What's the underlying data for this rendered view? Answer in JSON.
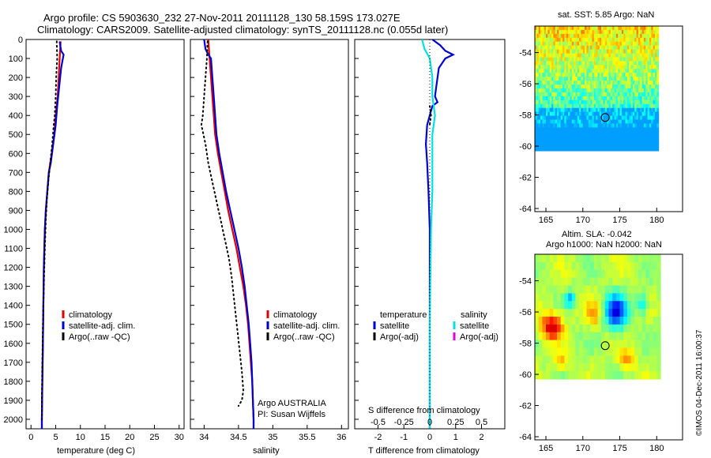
{
  "title": {
    "line1": "Argo profile: CS 5903630_232 27-Nov-2011 20111128_130 58.159S 173.027E",
    "line2": "Climatology: CARS2009. Satellite-adjusted climatology: synTS_20111128.nc (0.055d later)"
  },
  "colors": {
    "clim": "#e00000",
    "sat": "#0000d0",
    "argo": "#000000",
    "sat_sal": "#00e0e0",
    "argo_sal_diff": "#e000e0"
  },
  "chart_data": [
    {
      "id": "temperature",
      "type": "line",
      "xlabel": "temperature (deg C)",
      "ylim": [
        2050,
        0
      ],
      "xlim": [
        -1,
        31
      ],
      "xticks": [
        0,
        5,
        10,
        15,
        20,
        25,
        30
      ],
      "yticks": [
        0,
        100,
        200,
        300,
        400,
        500,
        600,
        700,
        800,
        900,
        1000,
        1100,
        1200,
        1300,
        1400,
        1500,
        1600,
        1700,
        1800,
        1900,
        2000
      ],
      "legend": [
        "climatology",
        "satellite-adj. clim.",
        "Argo(..raw -QC)"
      ],
      "series": [
        {
          "name": "climatology",
          "role": "clim",
          "points": [
            [
              6.0,
              10
            ],
            [
              5.8,
              100
            ],
            [
              5.6,
              200
            ],
            [
              5.4,
              300
            ],
            [
              5.0,
              400
            ],
            [
              4.7,
              500
            ],
            [
              4.2,
              600
            ],
            [
              3.6,
              700
            ],
            [
              3.3,
              800
            ],
            [
              3.0,
              900
            ],
            [
              2.8,
              1000
            ],
            [
              2.6,
              1200
            ],
            [
              2.5,
              1400
            ],
            [
              2.4,
              1600
            ],
            [
              2.3,
              1800
            ],
            [
              2.2,
              2000
            ],
            [
              2.2,
              2050
            ]
          ]
        },
        {
          "name": "satellite-adj. clim.",
          "role": "sat",
          "points": [
            [
              5.8,
              10
            ],
            [
              6.1,
              60
            ],
            [
              6.6,
              80
            ],
            [
              6.1,
              150
            ],
            [
              5.7,
              250
            ],
            [
              5.3,
              350
            ],
            [
              5.0,
              450
            ],
            [
              4.5,
              550
            ],
            [
              4.0,
              650
            ],
            [
              3.6,
              700
            ],
            [
              3.3,
              800
            ],
            [
              3.0,
              900
            ],
            [
              2.8,
              1000
            ],
            [
              2.6,
              1200
            ],
            [
              2.5,
              1400
            ],
            [
              2.4,
              1600
            ],
            [
              2.3,
              1800
            ],
            [
              2.2,
              2000
            ],
            [
              2.2,
              2050
            ]
          ]
        },
        {
          "name": "Argo(..raw -QC)",
          "role": "argo",
          "dotted": true,
          "points": [
            [
              5.2,
              10
            ],
            [
              5.3,
              100
            ],
            [
              5.1,
              200
            ],
            [
              5.0,
              300
            ],
            [
              4.8,
              400
            ],
            [
              4.6,
              450
            ],
            [
              4.3,
              550
            ],
            [
              3.9,
              650
            ],
            [
              3.5,
              750
            ],
            [
              3.2,
              850
            ],
            [
              3.0,
              950
            ],
            [
              2.8,
              1100
            ],
            [
              2.6,
              1300
            ],
            [
              2.4,
              1500
            ],
            [
              2.3,
              1700
            ],
            [
              2.2,
              1900
            ],
            [
              2.2,
              2000
            ]
          ]
        }
      ]
    },
    {
      "id": "salinity",
      "type": "line",
      "xlabel": "salinity",
      "ylim": [
        2050,
        0
      ],
      "xlim": [
        33.8,
        36.1
      ],
      "xticks": [
        34,
        34.5,
        35,
        35.5,
        36
      ],
      "legend": [
        "climatology",
        "satellite-adj. clim.",
        "Argo(..raw -QC)"
      ],
      "annotation": [
        "Argo AUSTRALIA",
        "PI: Susan Wijffels"
      ],
      "series": [
        {
          "name": "climatology",
          "role": "clim",
          "points": [
            [
              34.06,
              0
            ],
            [
              34.08,
              100
            ],
            [
              34.1,
              200
            ],
            [
              34.12,
              300
            ],
            [
              34.14,
              400
            ],
            [
              34.16,
              500
            ],
            [
              34.2,
              600
            ],
            [
              34.25,
              700
            ],
            [
              34.3,
              800
            ],
            [
              34.35,
              900
            ],
            [
              34.41,
              1000
            ],
            [
              34.47,
              1100
            ],
            [
              34.52,
              1200
            ],
            [
              34.57,
              1300
            ],
            [
              34.61,
              1400
            ],
            [
              34.64,
              1500
            ],
            [
              34.66,
              1600
            ],
            [
              34.68,
              1700
            ],
            [
              34.7,
              1800
            ],
            [
              34.71,
              1900
            ],
            [
              34.72,
              2000
            ],
            [
              34.72,
              2050
            ]
          ]
        },
        {
          "name": "satellite-adj. clim.",
          "role": "sat",
          "points": [
            [
              34.0,
              0
            ],
            [
              34.02,
              50
            ],
            [
              34.06,
              80
            ],
            [
              34.1,
              100
            ],
            [
              34.12,
              200
            ],
            [
              34.14,
              300
            ],
            [
              34.16,
              400
            ],
            [
              34.18,
              500
            ],
            [
              34.22,
              600
            ],
            [
              34.27,
              700
            ],
            [
              34.32,
              800
            ],
            [
              34.38,
              900
            ],
            [
              34.44,
              1000
            ],
            [
              34.5,
              1100
            ],
            [
              34.55,
              1200
            ],
            [
              34.59,
              1300
            ],
            [
              34.62,
              1400
            ],
            [
              34.65,
              1500
            ],
            [
              34.67,
              1600
            ],
            [
              34.69,
              1700
            ],
            [
              34.7,
              1800
            ],
            [
              34.71,
              1900
            ],
            [
              34.72,
              2000
            ],
            [
              34.72,
              2050
            ]
          ]
        },
        {
          "name": "Argo(..raw -QC)",
          "role": "argo",
          "dotted": true,
          "points": [
            [
              34.05,
              10
            ],
            [
              34.04,
              100
            ],
            [
              34.02,
              200
            ],
            [
              34.0,
              300
            ],
            [
              33.98,
              400
            ],
            [
              33.96,
              450
            ],
            [
              34.02,
              550
            ],
            [
              34.06,
              650
            ],
            [
              34.12,
              750
            ],
            [
              34.18,
              850
            ],
            [
              34.24,
              950
            ],
            [
              34.3,
              1050
            ],
            [
              34.36,
              1150
            ],
            [
              34.4,
              1250
            ],
            [
              34.43,
              1350
            ],
            [
              34.46,
              1450
            ],
            [
              34.49,
              1550
            ],
            [
              34.52,
              1650
            ],
            [
              34.55,
              1750
            ],
            [
              34.57,
              1850
            ],
            [
              34.55,
              1900
            ],
            [
              34.5,
              1930
            ]
          ]
        }
      ]
    },
    {
      "id": "difference",
      "type": "line",
      "xlabel": "T difference from climatology",
      "toplabel": "S difference from climatology",
      "ylim": [
        2050,
        0
      ],
      "xlim": [
        -2.9,
        2.9
      ],
      "xticks": [
        -2,
        -1,
        0,
        1,
        2
      ],
      "topticks": [
        "-0.5",
        "-0.25",
        "0",
        "0.25",
        "0.5"
      ],
      "legend": {
        "temperature_title": "temperature",
        "temperature": [
          "satellite",
          "Argo(-adj)"
        ],
        "salinity_title": "salinity",
        "salinity": [
          "satellite",
          "Argo(-adj)"
        ]
      },
      "series": [
        {
          "name": "temperature satellite",
          "role": "sat",
          "points": [
            [
              0.1,
              0
            ],
            [
              0.4,
              30
            ],
            [
              0.6,
              60
            ],
            [
              0.9,
              80
            ],
            [
              0.6,
              100
            ],
            [
              0.35,
              150
            ],
            [
              0.25,
              250
            ],
            [
              0.2,
              300
            ],
            [
              0.3,
              330
            ],
            [
              0.1,
              350
            ],
            [
              0.0,
              400
            ],
            [
              -0.1,
              450
            ],
            [
              -0.15,
              550
            ],
            [
              -0.1,
              650
            ],
            [
              -0.05,
              800
            ],
            [
              0.0,
              1000
            ],
            [
              0.0,
              1500
            ],
            [
              0.0,
              2050
            ]
          ]
        },
        {
          "name": "salinity satellite",
          "role": "sat_sal",
          "points": [
            [
              -0.3,
              0
            ],
            [
              -0.2,
              50
            ],
            [
              0.0,
              100
            ],
            [
              0.1,
              200
            ],
            [
              0.1,
              300
            ],
            [
              0.2,
              400
            ],
            [
              0.1,
              500
            ],
            [
              0.1,
              600
            ],
            [
              0.1,
              800
            ],
            [
              0.05,
              1000
            ],
            [
              0.0,
              1500
            ],
            [
              0.0,
              2050
            ]
          ]
        },
        {
          "name": "temperature Argo(-adj)",
          "role": "argo",
          "dotted": true,
          "points": [
            [
              0.0,
              350
            ],
            [
              0.05,
              400
            ],
            [
              0.0,
              450
            ]
          ]
        }
      ]
    },
    {
      "id": "sst_map",
      "type": "heatmap",
      "title": "sat. SST: 5.85  Argo: NaN",
      "xlim": [
        163.5,
        183.5
      ],
      "ylim": [
        -64.2,
        -52.3
      ],
      "xticks": [
        165,
        170,
        175,
        180
      ],
      "yticks": [
        -54,
        -56,
        -58,
        -60,
        -62,
        -64
      ],
      "marker": [
        173.03,
        -58.16
      ]
    },
    {
      "id": "sla_map",
      "type": "heatmap",
      "title_line1": "Altim. SLA: -0.042",
      "title_line2": "Argo h1000: NaN h2000: NaN",
      "xlim": [
        163.5,
        183.5
      ],
      "ylim": [
        -64.2,
        -52.3
      ],
      "xticks": [
        165,
        170,
        175,
        180
      ],
      "yticks": [
        -54,
        -56,
        -58,
        -60,
        -62,
        -64
      ],
      "marker": [
        173.03,
        -58.16
      ]
    }
  ],
  "watermark": "©IMOS 04-Dec-2011 16:00:37"
}
